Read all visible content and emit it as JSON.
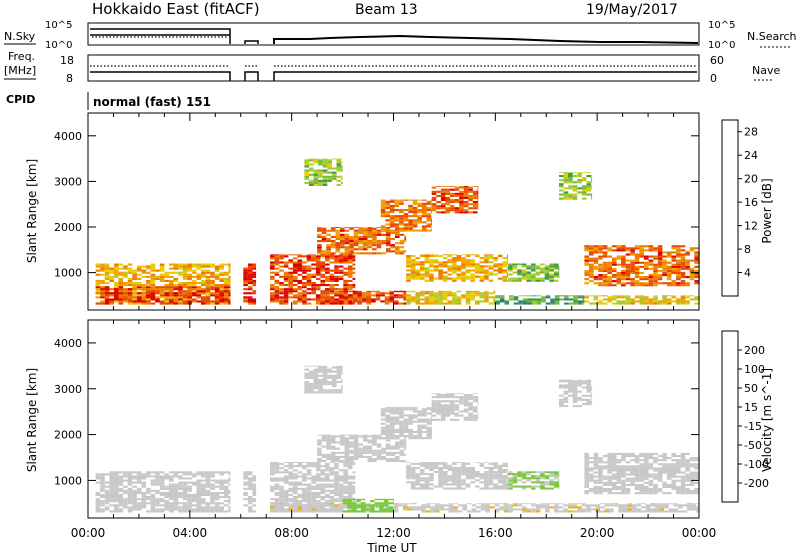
{
  "header": {
    "station": "Hokkaido East (fitACF)",
    "beam": "Beam 13",
    "date": "19/May/2017"
  },
  "top_panels": {
    "nsky_label": "N.Sky",
    "nsearch_label": "N.Search",
    "freq_label_1": "Freq.",
    "freq_label_2": "[MHz]",
    "nave_label": "Nave",
    "cpid_label": "CPID",
    "cpid_value": "normal (fast) 151",
    "noise_left_ticks": [
      "10^5",
      "10^0"
    ],
    "noise_right_ticks": [
      "10^5",
      "10^0"
    ],
    "freq_left_ticks": [
      "18",
      "8"
    ],
    "nave_right_ticks": [
      "60",
      "0"
    ]
  },
  "chart_data": [
    {
      "type": "heatmap",
      "name": "power",
      "xlabel": "Time UT",
      "ylabel": "Slant Range [km]",
      "xlim_hours": [
        0,
        24
      ],
      "ylim_km": [
        180,
        4500
      ],
      "x_ticks": [
        "00:00",
        "04:00",
        "08:00",
        "12:00",
        "16:00",
        "20:00",
        "00:00"
      ],
      "y_ticks": [
        1000,
        2000,
        3000,
        4000
      ],
      "colorbar": {
        "label": "Power [dB]",
        "ticks": [
          4,
          8,
          12,
          16,
          20,
          24,
          28
        ],
        "range": [
          0,
          30
        ],
        "colors": [
          "#0000ff",
          "#1f4ea0",
          "#2e7d7d",
          "#3c9a4a",
          "#78b83a",
          "#a6cc2e",
          "#e8cc00",
          "#f0a000",
          "#ee7a00",
          "#e84800",
          "#e00000"
        ]
      },
      "gaps_hours": [
        [
          5.6,
          6.1
        ],
        [
          6.6,
          7.15
        ]
      ],
      "regions": [
        {
          "t": [
            0.3,
            5.6
          ],
          "r": [
            300,
            1200
          ],
          "level": 20
        },
        {
          "t": [
            0.3,
            5.6
          ],
          "r": [
            300,
            700
          ],
          "level": 27
        },
        {
          "t": [
            6.1,
            6.6
          ],
          "r": [
            300,
            1200
          ],
          "level": 28
        },
        {
          "t": [
            7.15,
            10.5
          ],
          "r": [
            300,
            1400
          ],
          "level": 26
        },
        {
          "t": [
            9.5,
            12.5
          ],
          "r": [
            300,
            600
          ],
          "level": 26
        },
        {
          "t": [
            12.5,
            16.0
          ],
          "r": [
            300,
            600
          ],
          "level": 18
        },
        {
          "t": [
            16.0,
            19.5
          ],
          "r": [
            300,
            500
          ],
          "level": 10
        },
        {
          "t": [
            19.5,
            24.0
          ],
          "r": [
            300,
            500
          ],
          "level": 18
        },
        {
          "t": [
            9.0,
            12.5
          ],
          "r": [
            1400,
            2000
          ],
          "level": 24
        },
        {
          "t": [
            11.5,
            13.5
          ],
          "r": [
            1900,
            2600
          ],
          "level": 23
        },
        {
          "t": [
            13.5,
            15.3
          ],
          "r": [
            2300,
            2900
          ],
          "level": 26
        },
        {
          "t": [
            12.5,
            16.5
          ],
          "r": [
            800,
            1400
          ],
          "level": 20
        },
        {
          "t": [
            16.5,
            18.5
          ],
          "r": [
            800,
            1200
          ],
          "level": 13
        },
        {
          "t": [
            19.5,
            24.0
          ],
          "r": [
            700,
            1600
          ],
          "level": 24
        },
        {
          "t": [
            8.5,
            10.0
          ],
          "r": [
            2900,
            3500
          ],
          "level": 14
        },
        {
          "t": [
            18.5,
            19.8
          ],
          "r": [
            2600,
            3200
          ],
          "level": 14
        }
      ]
    },
    {
      "type": "heatmap",
      "name": "velocity",
      "xlabel": "Time UT",
      "ylabel": "Slant Range [km]",
      "xlim_hours": [
        0,
        24
      ],
      "ylim_km": [
        180,
        4500
      ],
      "x_ticks": [
        "00:00",
        "04:00",
        "08:00",
        "12:00",
        "16:00",
        "20:00",
        "00:00"
      ],
      "y_ticks": [
        1000,
        2000,
        3000,
        4000
      ],
      "colorbar": {
        "label": "Velocity [m s^-1]",
        "ticks": [
          200,
          100,
          50,
          15,
          -15,
          -50,
          -100,
          -200
        ],
        "range": [
          -250,
          250
        ],
        "colors": [
          "#e00000",
          "#ee5a00",
          "#f08c00",
          "#f0b400",
          "#c8c8c8",
          "#7ac83c",
          "#3c9a4a",
          "#2e6e8a",
          "#1a2ea0"
        ]
      },
      "gaps_hours": [
        [
          5.6,
          6.1
        ],
        [
          6.6,
          7.15
        ]
      ],
      "regions": [
        {
          "t": [
            0.3,
            5.6
          ],
          "r": [
            300,
            1200
          ],
          "level": 0
        },
        {
          "t": [
            6.1,
            6.6
          ],
          "r": [
            300,
            1200
          ],
          "level": 0
        },
        {
          "t": [
            7.15,
            10.5
          ],
          "r": [
            300,
            1400
          ],
          "level": 0
        },
        {
          "t": [
            9.0,
            12.5
          ],
          "r": [
            1400,
            2000
          ],
          "level": 0
        },
        {
          "t": [
            11.5,
            13.5
          ],
          "r": [
            1900,
            2600
          ],
          "level": 0
        },
        {
          "t": [
            13.5,
            15.3
          ],
          "r": [
            2300,
            2900
          ],
          "level": 0
        },
        {
          "t": [
            12.5,
            16.5
          ],
          "r": [
            800,
            1400
          ],
          "level": 5
        },
        {
          "t": [
            16.5,
            18.5
          ],
          "r": [
            800,
            1200
          ],
          "level": 30
        },
        {
          "t": [
            19.5,
            24.0
          ],
          "r": [
            700,
            1600
          ],
          "level": 0
        },
        {
          "t": [
            7.15,
            24.0
          ],
          "r": [
            300,
            500
          ],
          "level": -20
        },
        {
          "t": [
            10.0,
            12.0
          ],
          "r": [
            300,
            600
          ],
          "level": 40
        },
        {
          "t": [
            8.5,
            10.0
          ],
          "r": [
            2900,
            3500
          ],
          "level": 0
        },
        {
          "t": [
            18.5,
            19.8
          ],
          "r": [
            2600,
            3200
          ],
          "level": 0
        }
      ]
    }
  ]
}
